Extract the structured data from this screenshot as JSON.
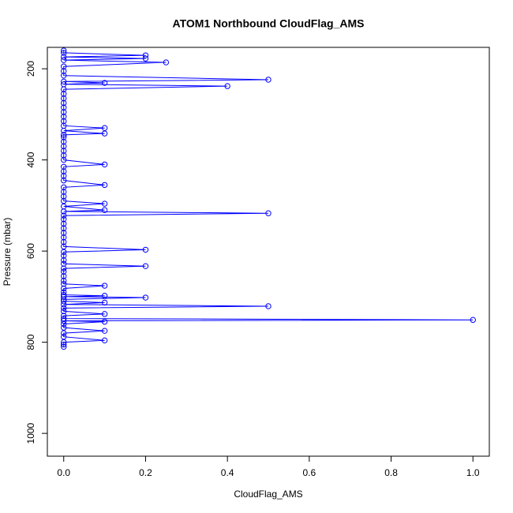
{
  "chart_data": {
    "type": "line-points",
    "title": "ATOM1 Northbound CloudFlag_AMS",
    "x_label": "CloudFlag_AMS",
    "y_label": "Pressure (mbar)",
    "color": "#0000ff",
    "xlim": [
      -0.04,
      1.04
    ],
    "ylim": [
      1050,
      153
    ],
    "xticks": [
      {
        "value": 0,
        "label": "0.0"
      },
      0.2,
      0.4,
      0.6,
      0.8,
      {
        "value": 1,
        "label": "1.0"
      }
    ],
    "yticks": [
      200,
      400,
      600,
      800,
      1000
    ],
    "x": [
      0,
      0,
      0.2,
      0,
      0.2,
      0,
      0.25,
      0,
      0,
      0,
      0.5,
      0,
      0.1,
      0,
      0.4,
      0,
      0,
      0,
      0,
      0,
      0,
      0,
      0,
      0,
      0.1,
      0,
      0.1,
      0,
      0,
      0,
      0,
      0,
      0,
      0,
      0.1,
      0,
      0,
      0,
      0,
      0.1,
      0,
      0,
      0,
      0,
      0.1,
      0,
      0.1,
      0,
      0.5,
      0,
      0,
      0,
      0,
      0,
      0,
      0,
      0,
      0.2,
      0,
      0,
      0,
      0,
      0.2,
      0,
      0,
      0,
      0,
      0,
      0.1,
      0,
      0,
      0,
      0.1,
      0,
      0.2,
      0,
      0,
      0.1,
      0,
      0.5,
      0,
      0,
      0.1,
      0,
      0,
      1,
      0,
      0.1,
      0,
      0,
      0.1,
      0,
      0,
      0.1,
      0,
      0,
      0
    ],
    "y": [
      160,
      165,
      170.6,
      174,
      177.5,
      181,
      186,
      195,
      205,
      215,
      224,
      228,
      231,
      234,
      238,
      245,
      255,
      265,
      275,
      285,
      295,
      305,
      315,
      325,
      330,
      336,
      342,
      345,
      350,
      360,
      370,
      380,
      390,
      400,
      410,
      415,
      425,
      435,
      445,
      455,
      460,
      470,
      480,
      490,
      496,
      502,
      510,
      513,
      517,
      522,
      530,
      540,
      550,
      560,
      570,
      580,
      590,
      597,
      602,
      610,
      620,
      628,
      633,
      638,
      645,
      655,
      665,
      672,
      676,
      682,
      690,
      696,
      698,
      700,
      702,
      706,
      710,
      713,
      717,
      721,
      725,
      732,
      738,
      742,
      748,
      751,
      753,
      755,
      760,
      768,
      775,
      780,
      788,
      796,
      800,
      805,
      810
    ]
  }
}
